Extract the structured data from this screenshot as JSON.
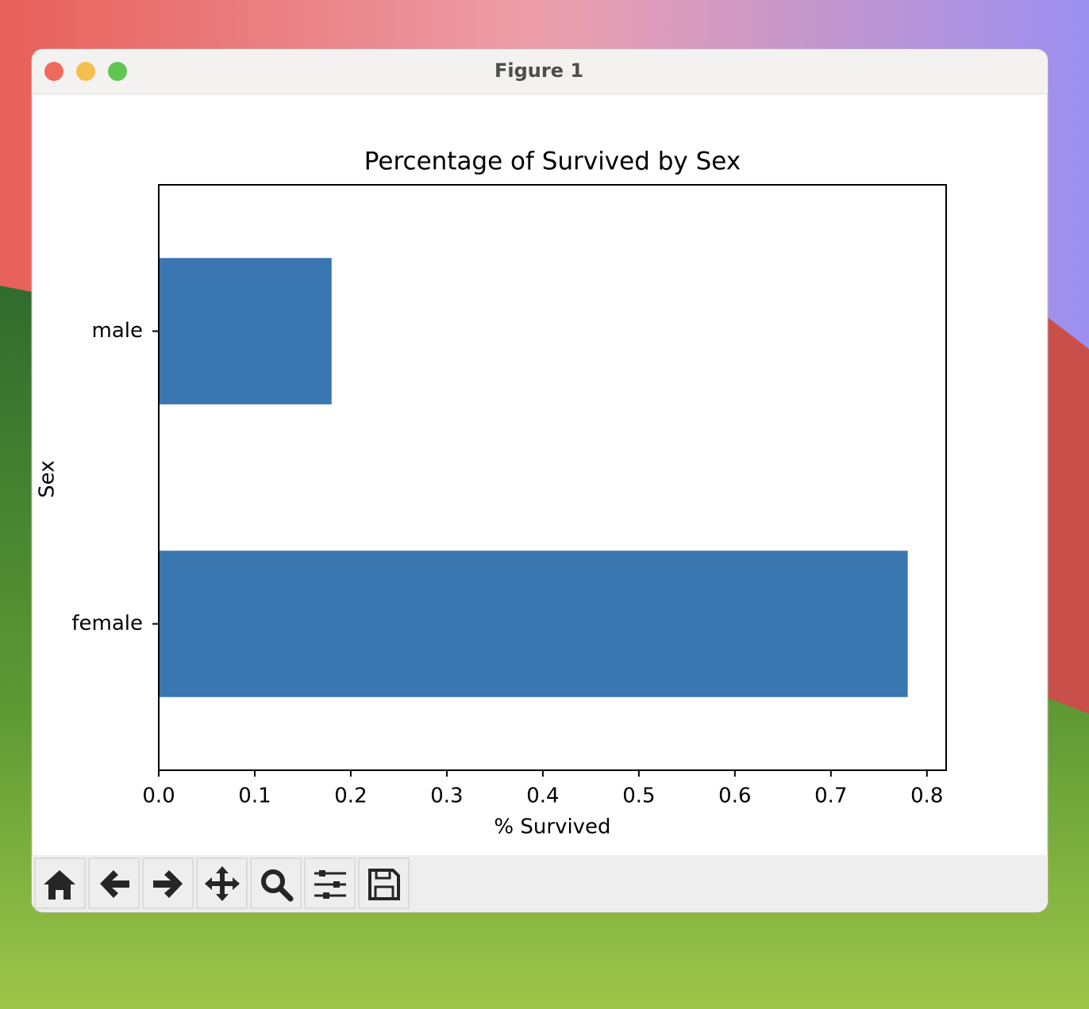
{
  "window": {
    "title": "Figure 1"
  },
  "chart_data": {
    "type": "barh",
    "title": "Percentage of Survived by Sex",
    "xlabel": "% Survived",
    "ylabel": "Sex",
    "categories": [
      "female",
      "male"
    ],
    "values": [
      0.78,
      0.18
    ],
    "color": "#3a76af",
    "xlim": [
      0,
      0.82
    ],
    "xticks": [
      {
        "value": 0,
        "label": "0.0"
      },
      0.1,
      0.2,
      0.3,
      0.4,
      0.5,
      0.6,
      0.7,
      0.8
    ],
    "grid": false
  }
}
